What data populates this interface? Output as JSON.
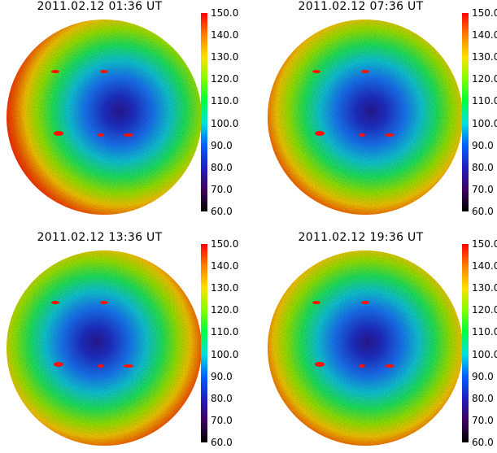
{
  "panels": [
    {
      "title": "2011.02.12  01:36  UT",
      "center_shift": 0.22
    },
    {
      "title": "2011.02.12  07:36  UT",
      "center_shift": 0.08
    },
    {
      "title": "2011.02.12  13:36  UT",
      "center_shift": -0.12
    },
    {
      "title": "2011.02.12  19:36  UT",
      "center_shift": 0.04
    }
  ],
  "colorbar": {
    "ticks": [
      "150.0",
      "140.0",
      "130.0",
      "120.0",
      "110.0",
      "100.0",
      "90.0",
      "80.0",
      "70.0",
      "60.0"
    ],
    "colors": [
      "#ff0000",
      "#ff8000",
      "#ffe000",
      "#80ff00",
      "#00ff40",
      "#00e0e0",
      "#0060ff",
      "#2020c0",
      "#400060",
      "#000000"
    ]
  }
}
